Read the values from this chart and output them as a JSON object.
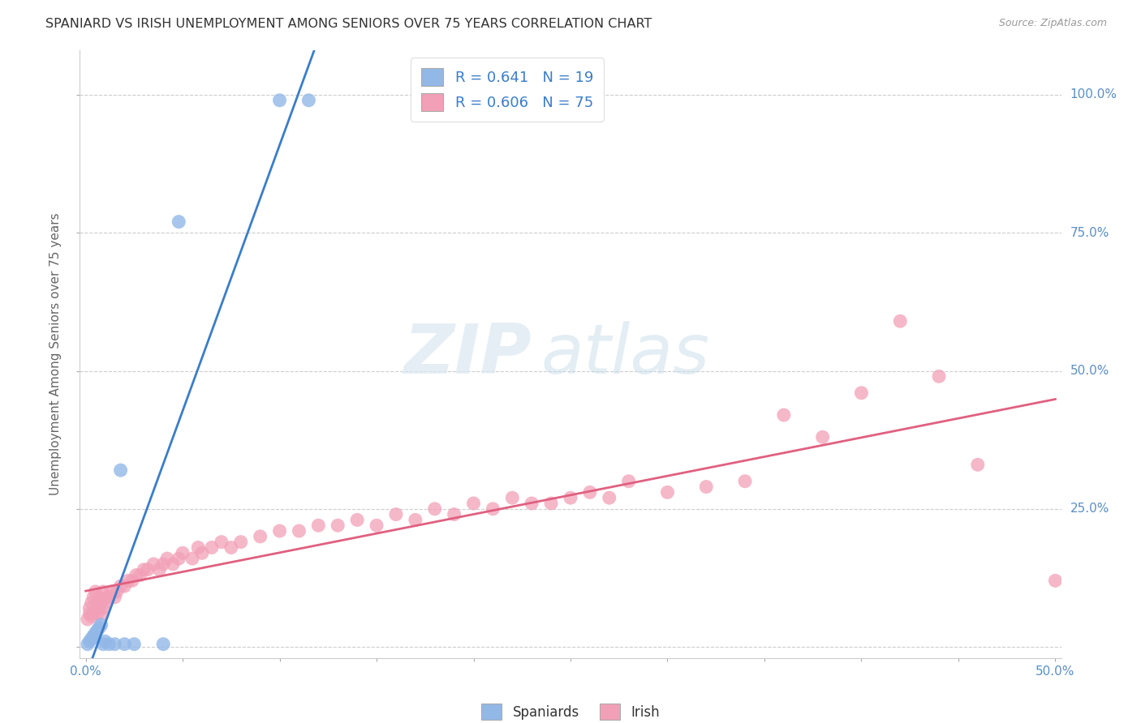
{
  "title": "SPANIARD VS IRISH UNEMPLOYMENT AMONG SENIORS OVER 75 YEARS CORRELATION CHART",
  "source": "Source: ZipAtlas.com",
  "ylabel": "Unemployment Among Seniors over 75 years",
  "xlim": [
    0,
    0.5
  ],
  "ylim": [
    -0.01,
    1.07
  ],
  "legend_r_spaniards": "0.641",
  "legend_n_spaniards": "19",
  "legend_r_irish": "0.606",
  "legend_n_irish": "75",
  "watermark_zip": "ZIP",
  "watermark_atlas": "atlas",
  "spaniards_color": "#92b8e8",
  "irish_color": "#f2a0b8",
  "spaniards_line_color": "#3a7dc9",
  "irish_line_color": "#e06080",
  "sp_x": [
    0.001,
    0.002,
    0.003,
    0.004,
    0.005,
    0.006,
    0.007,
    0.008,
    0.009,
    0.01,
    0.012,
    0.015,
    0.018,
    0.02,
    0.025,
    0.04,
    0.048,
    0.1,
    0.115
  ],
  "sp_y": [
    0.005,
    0.01,
    0.015,
    0.02,
    0.025,
    0.03,
    0.035,
    0.04,
    0.005,
    0.01,
    0.005,
    0.005,
    0.32,
    0.005,
    0.005,
    0.005,
    0.77,
    0.99,
    0.99
  ],
  "ir_x": [
    0.001,
    0.002,
    0.002,
    0.003,
    0.003,
    0.004,
    0.004,
    0.005,
    0.005,
    0.006,
    0.006,
    0.007,
    0.007,
    0.008,
    0.008,
    0.009,
    0.009,
    0.01,
    0.011,
    0.012,
    0.013,
    0.015,
    0.016,
    0.018,
    0.02,
    0.022,
    0.024,
    0.026,
    0.028,
    0.03,
    0.032,
    0.035,
    0.038,
    0.04,
    0.042,
    0.045,
    0.048,
    0.05,
    0.055,
    0.058,
    0.06,
    0.065,
    0.07,
    0.075,
    0.08,
    0.09,
    0.1,
    0.11,
    0.12,
    0.13,
    0.14,
    0.15,
    0.16,
    0.17,
    0.18,
    0.19,
    0.2,
    0.21,
    0.22,
    0.23,
    0.24,
    0.25,
    0.26,
    0.27,
    0.28,
    0.3,
    0.32,
    0.34,
    0.36,
    0.38,
    0.4,
    0.42,
    0.44,
    0.46,
    0.5
  ],
  "ir_y": [
    0.05,
    0.06,
    0.07,
    0.055,
    0.08,
    0.06,
    0.09,
    0.065,
    0.1,
    0.06,
    0.08,
    0.07,
    0.09,
    0.06,
    0.08,
    0.07,
    0.1,
    0.08,
    0.09,
    0.09,
    0.1,
    0.09,
    0.1,
    0.11,
    0.11,
    0.12,
    0.12,
    0.13,
    0.13,
    0.14,
    0.14,
    0.15,
    0.14,
    0.15,
    0.16,
    0.15,
    0.16,
    0.17,
    0.16,
    0.18,
    0.17,
    0.18,
    0.19,
    0.18,
    0.19,
    0.2,
    0.21,
    0.21,
    0.22,
    0.22,
    0.23,
    0.22,
    0.24,
    0.23,
    0.25,
    0.24,
    0.26,
    0.25,
    0.27,
    0.26,
    0.26,
    0.27,
    0.28,
    0.27,
    0.3,
    0.28,
    0.29,
    0.3,
    0.42,
    0.38,
    0.46,
    0.59,
    0.49,
    0.33,
    0.12
  ],
  "sp_line": [
    0.0,
    0.25,
    -0.02,
    0.98
  ],
  "ir_line": [
    0.0,
    0.5,
    0.055,
    0.36
  ]
}
